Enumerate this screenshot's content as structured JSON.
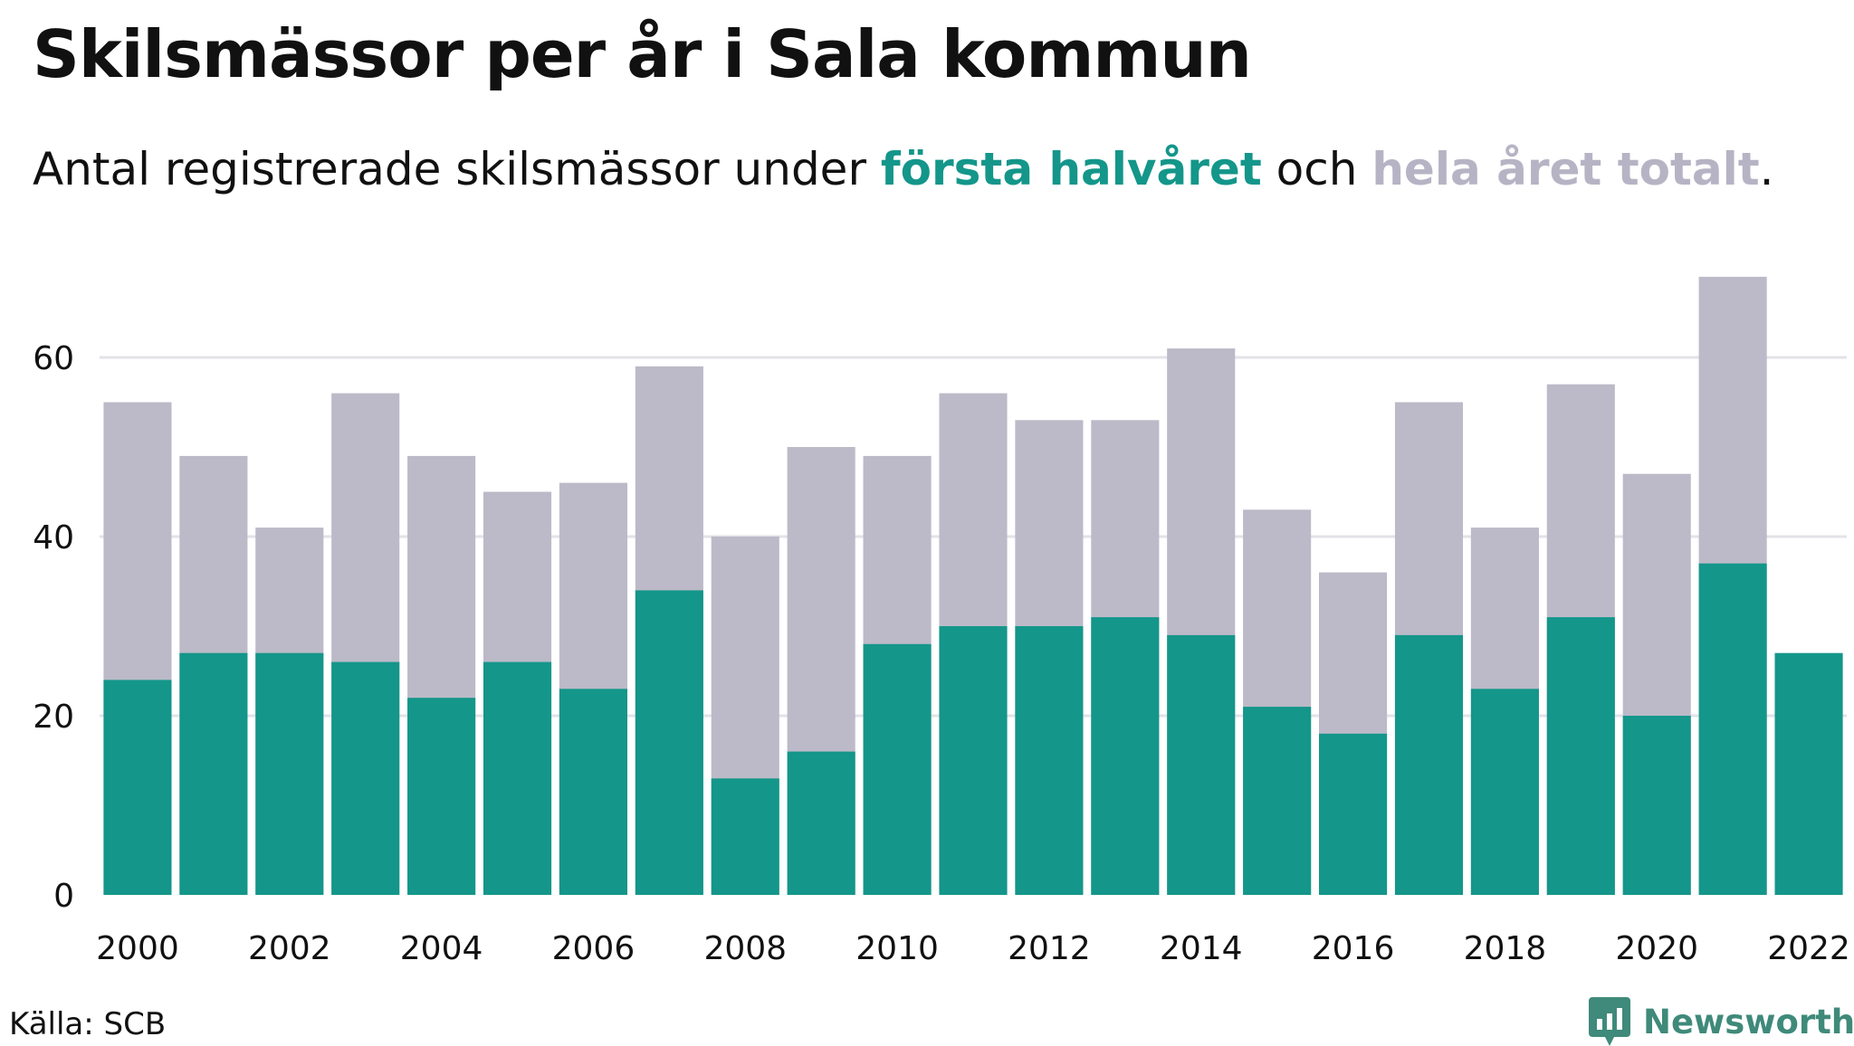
{
  "header": {
    "title": "Skilsmässor per år i Sala kommun",
    "subtitle_pre": "Antal registrerade skilsmässor under ",
    "subtitle_hl1": "första halvåret",
    "subtitle_mid": " och ",
    "subtitle_hl2": "hela året totalt",
    "subtitle_post": "."
  },
  "footer": {
    "source": "Källa: SCB",
    "brand": "Newsworthy"
  },
  "colors": {
    "first_half": "#14968a",
    "full_year": "#bcbac8",
    "grid": "#e2e2e8",
    "text": "#111111"
  },
  "chart_data": {
    "type": "bar",
    "stacked": "overlay",
    "categories": [
      "2000",
      "2001",
      "2002",
      "2003",
      "2004",
      "2005",
      "2006",
      "2007",
      "2008",
      "2009",
      "2010",
      "2011",
      "2012",
      "2013",
      "2014",
      "2015",
      "2016",
      "2017",
      "2018",
      "2019",
      "2020",
      "2021",
      "2022"
    ],
    "x_tick_labels": [
      "2000",
      "2002",
      "2004",
      "2006",
      "2008",
      "2010",
      "2012",
      "2014",
      "2016",
      "2018",
      "2020",
      "2022"
    ],
    "series": [
      {
        "values": [
          55,
          49,
          41,
          56,
          49,
          45,
          46,
          59,
          40,
          50,
          49,
          56,
          53,
          53,
          61,
          43,
          36,
          55,
          41,
          57,
          47,
          69,
          null
        ]
      },
      {
        "values": [
          24,
          27,
          27,
          26,
          22,
          26,
          23,
          34,
          13,
          16,
          28,
          30,
          30,
          31,
          29,
          21,
          18,
          29,
          23,
          31,
          20,
          37,
          27
        ]
      }
    ],
    "y_ticks": [
      0,
      20,
      40,
      60
    ],
    "ylim": [
      0,
      70
    ],
    "grid": true,
    "legend": "in subtitle"
  }
}
